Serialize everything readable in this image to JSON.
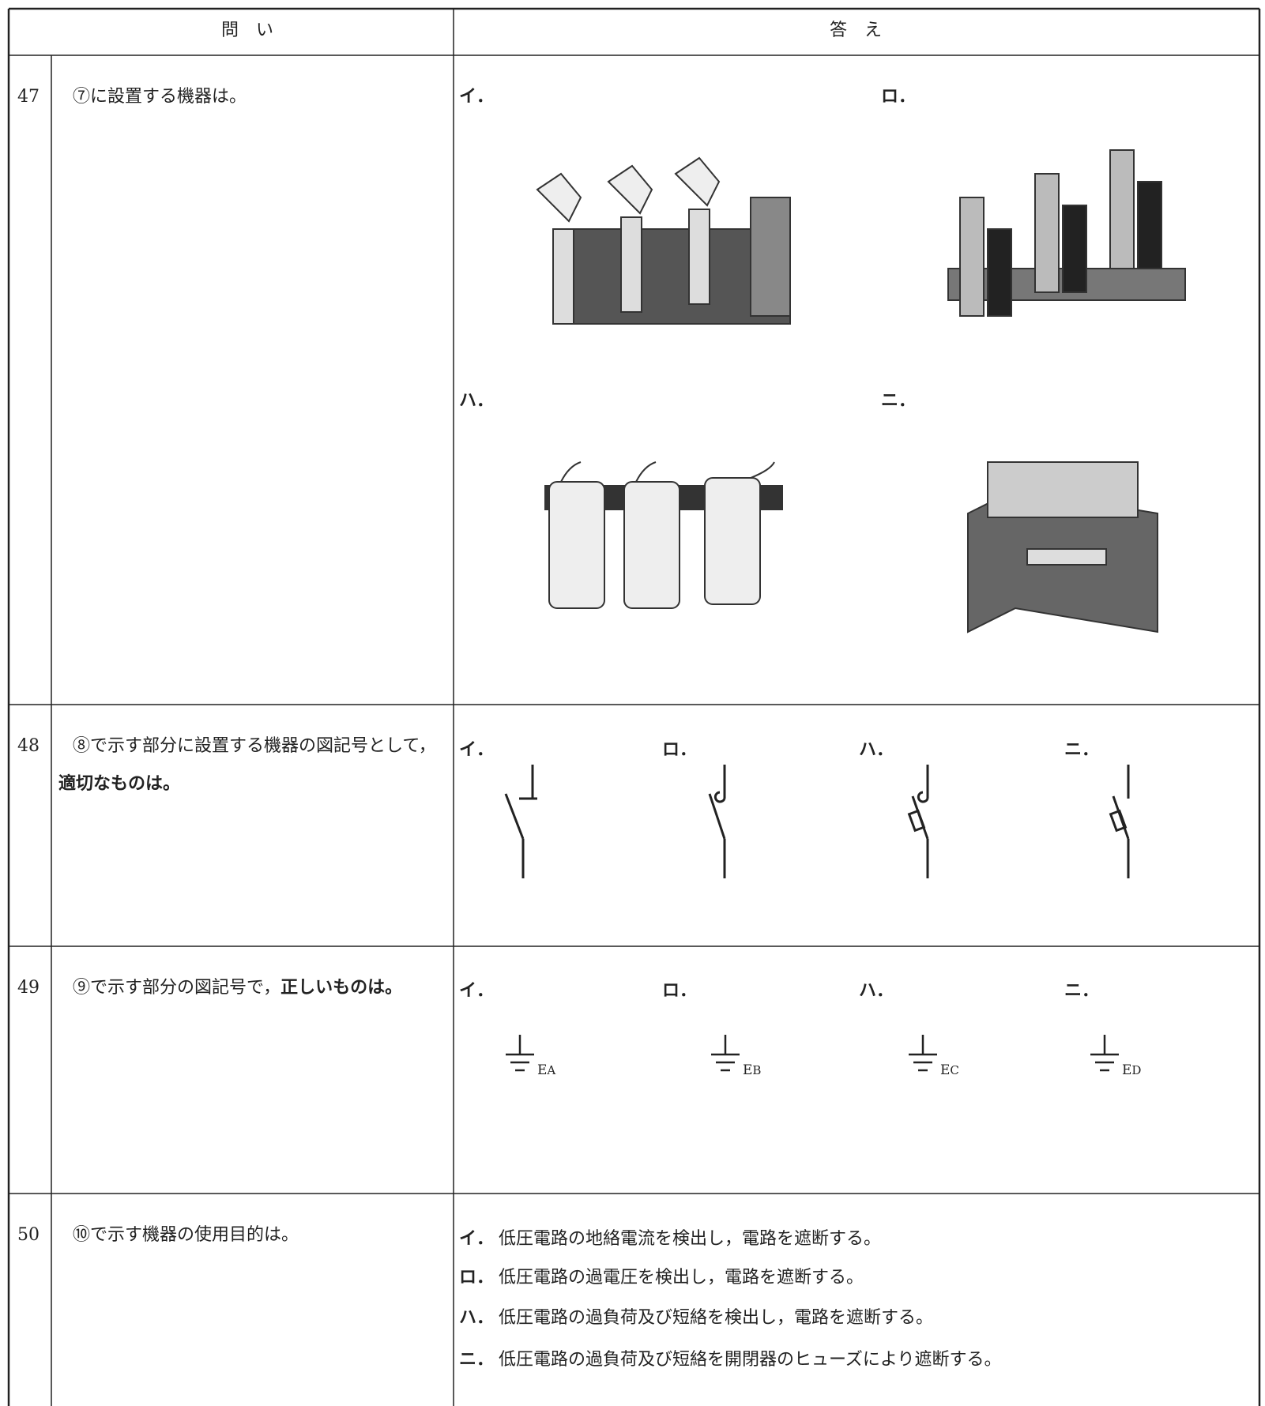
{
  "header": {
    "question": "問　い",
    "answer": "答　え"
  },
  "rows": [
    {
      "number": "47",
      "question": [
        {
          "text": "⑦に設置する機器は。"
        }
      ],
      "options": [
        {
          "label": "イ．"
        },
        {
          "label": "ロ．"
        },
        {
          "label": "ハ．"
        },
        {
          "label": "ニ．"
        }
      ]
    },
    {
      "number": "48",
      "question": [
        {
          "text": "⑧で示す部分に設置する機器の図記号として，"
        },
        {
          "text": "適切なものは。",
          "emphasis": true
        }
      ],
      "options": [
        {
          "label": "イ．"
        },
        {
          "label": "ロ．"
        },
        {
          "label": "ハ．"
        },
        {
          "label": "ニ．"
        }
      ]
    },
    {
      "number": "49",
      "question": [
        {
          "text": "⑨で示す部分の図記号で，"
        },
        {
          "text": "正しいものは。",
          "emphasis": true
        }
      ],
      "options": [
        {
          "label": "イ．",
          "symbol": "E",
          "subscript": "A"
        },
        {
          "label": "ロ．",
          "symbol": "E",
          "subscript": "B"
        },
        {
          "label": "ハ．",
          "symbol": "E",
          "subscript": "C"
        },
        {
          "label": "ニ．",
          "symbol": "E",
          "subscript": "D"
        }
      ]
    },
    {
      "number": "50",
      "question": [
        {
          "text": "⑩で示す機器の使用目的は。"
        }
      ],
      "options": [
        {
          "label": "イ．",
          "text": "低圧電路の地絡電流を検出し，電路を遮断する。"
        },
        {
          "label": "ロ．",
          "text": "低圧電路の過電圧を検出し，電路を遮断する。"
        },
        {
          "label": "ハ．",
          "text": "低圧電路の過負荷及び短絡を検出し，電路を遮断する。"
        },
        {
          "label": "ニ．",
          "text": "低圧電路の過負荷及び短絡を開閉器のヒューズにより遮断する。"
        }
      ]
    }
  ]
}
